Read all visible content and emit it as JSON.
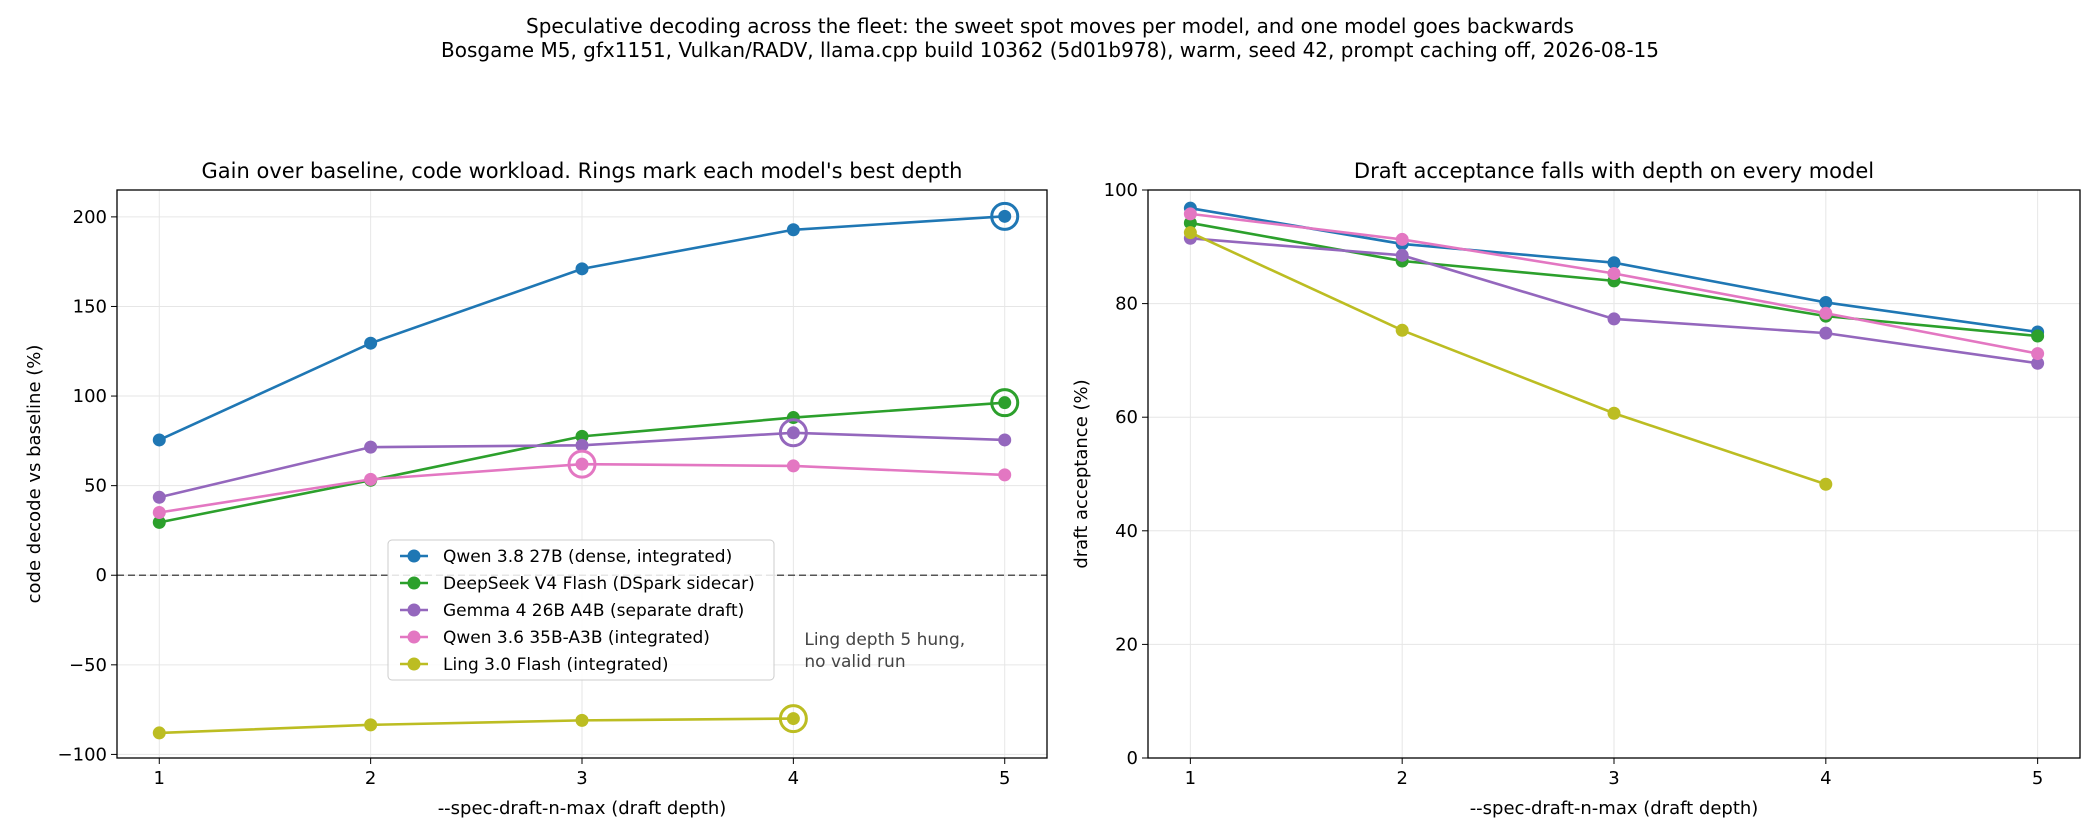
{
  "suptitle": {
    "line1": "Speculative decoding across the fleet: the sweet spot moves per model, and one model goes backwards",
    "line2": "Bosgame M5, gfx1151, Vulkan/RADV, llama.cpp build 10362 (5d01b978), warm, seed 42, prompt caching off, 2026-08-15"
  },
  "chart_data": [
    {
      "type": "line",
      "title": "Gain over baseline, code workload. Rings mark each model's best depth",
      "xlabel": "--spec-draft-n-max (draft depth)",
      "ylabel": "code decode vs baseline (%)",
      "x": [
        1,
        2,
        3,
        4,
        5
      ],
      "xlim": [
        0.8,
        5.2
      ],
      "ylim": [
        -102,
        215
      ],
      "xticks": [
        "1",
        "2",
        "3",
        "4",
        "5"
      ],
      "yticks": [
        "−100",
        "−50",
        "0",
        "50",
        "100",
        "150",
        "200"
      ],
      "yticks_values": [
        -100,
        -50,
        0,
        50,
        100,
        150,
        200
      ],
      "grid": true,
      "reference_line": 0,
      "legend_position": "lower-center",
      "annotation": [
        "Ling depth 5 hung,",
        "no valid run"
      ],
      "series": [
        {
          "name": "Qwen 3.8 27B (dense, integrated)",
          "color": "#1f77b4",
          "values": [
            75.5,
            129.5,
            171.0,
            192.8,
            200.3
          ],
          "best_x": 5
        },
        {
          "name": "DeepSeek V4 Flash (DSpark sidecar)",
          "color": "#2ca02c",
          "values": [
            29.5,
            53.0,
            77.5,
            88.0,
            96.3
          ],
          "best_x": 5
        },
        {
          "name": "Gemma 4 26B A4B (separate draft)",
          "color": "#9467bd",
          "values": [
            43.5,
            71.5,
            72.5,
            79.5,
            75.5
          ],
          "best_x": 4
        },
        {
          "name": "Qwen 3.6 35B-A3B (integrated)",
          "color": "#e377c2",
          "values": [
            35.0,
            53.5,
            62.0,
            61.0,
            56.0
          ],
          "best_x": 3
        },
        {
          "name": "Ling 3.0 Flash (integrated)",
          "color": "#bcbd22",
          "values": [
            -88.0,
            -83.5,
            -81.0,
            -80.0,
            null
          ],
          "best_x": 4
        }
      ]
    },
    {
      "type": "line",
      "title": "Draft acceptance falls with depth on every model",
      "xlabel": "--spec-draft-n-max (draft depth)",
      "ylabel": "draft acceptance (%)",
      "x": [
        1,
        2,
        3,
        4,
        5
      ],
      "xlim": [
        0.8,
        5.2
      ],
      "ylim": [
        0,
        100
      ],
      "xticks": [
        "1",
        "2",
        "3",
        "4",
        "5"
      ],
      "yticks": [
        "0",
        "20",
        "40",
        "60",
        "80",
        "100"
      ],
      "yticks_values": [
        0,
        20,
        40,
        60,
        80,
        100
      ],
      "grid": true,
      "series": [
        {
          "name": "Qwen 3.8 27B (dense, integrated)",
          "color": "#1f77b4",
          "values": [
            96.8,
            90.5,
            87.2,
            80.2,
            75.0
          ]
        },
        {
          "name": "DeepSeek V4 Flash (DSpark sidecar)",
          "color": "#2ca02c",
          "values": [
            94.2,
            87.5,
            84.0,
            77.8,
            74.3
          ]
        },
        {
          "name": "Gemma 4 26B A4B (separate draft)",
          "color": "#9467bd",
          "values": [
            91.5,
            88.5,
            77.3,
            74.8,
            69.5
          ]
        },
        {
          "name": "Qwen 3.6 35B-A3B (integrated)",
          "color": "#e377c2",
          "values": [
            95.8,
            91.3,
            85.3,
            78.3,
            71.2
          ]
        },
        {
          "name": "Ling 3.0 Flash (integrated)",
          "color": "#bcbd22",
          "values": [
            92.5,
            75.3,
            60.7,
            48.2,
            null
          ]
        }
      ]
    }
  ]
}
